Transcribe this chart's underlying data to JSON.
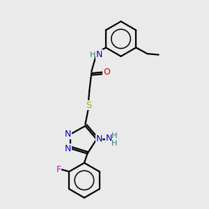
{
  "bg_color": "#eaeaea",
  "atom_colors": {
    "C": "#000000",
    "N": "#0000cc",
    "O": "#cc0000",
    "S": "#aaaa00",
    "F": "#cc00cc",
    "H_label": "#337777"
  },
  "bond_color": "#000000",
  "figsize": [
    3.0,
    3.0
  ],
  "dpi": 100,
  "xlim": [
    0,
    10
  ],
  "ylim": [
    0,
    10
  ]
}
